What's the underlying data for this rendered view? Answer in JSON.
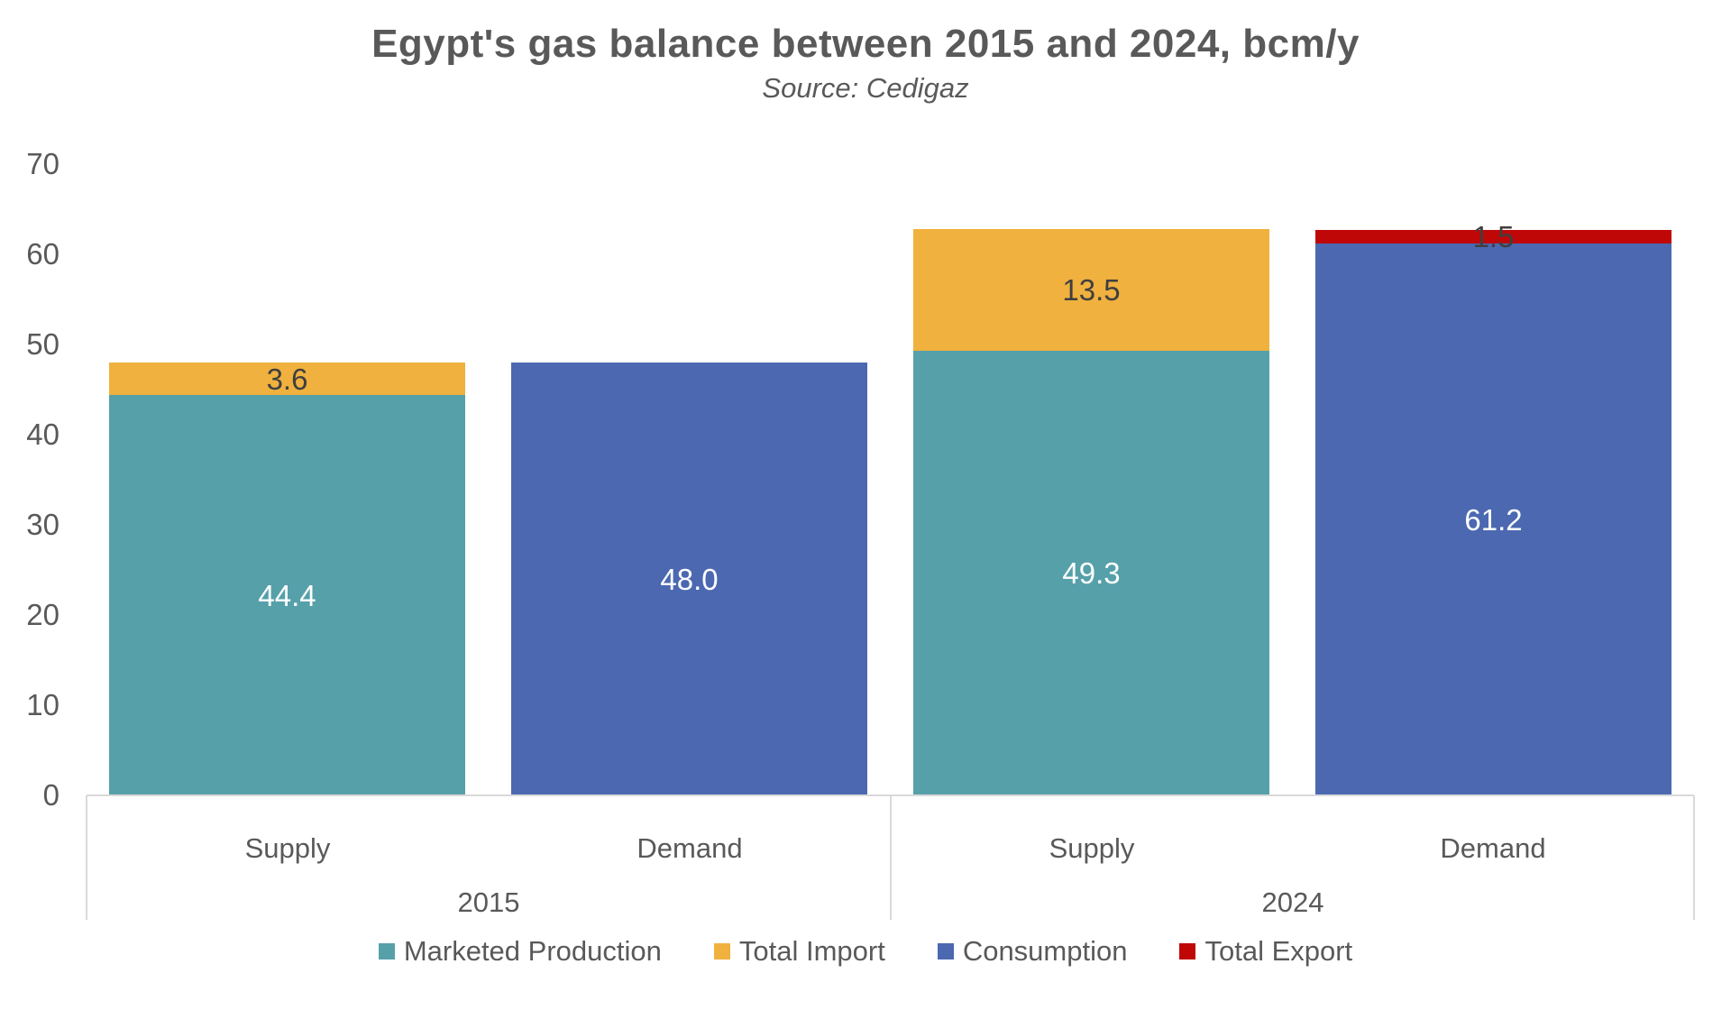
{
  "chart_data": {
    "type": "bar",
    "stacked": true,
    "title": "Egypt's gas balance between 2015 and 2024, bcm/y",
    "subtitle": "Source: Cedigaz",
    "xlabel": "",
    "ylabel": "",
    "ylim": [
      0,
      70
    ],
    "yticks": [
      0,
      10,
      20,
      30,
      40,
      50,
      60,
      70
    ],
    "grid": false,
    "legend_position": "bottom",
    "series": [
      {
        "name": "Marketed Production",
        "color": "#56A0AA",
        "label_style": "light"
      },
      {
        "name": "Total Import",
        "color": "#F0B13E",
        "label_style": "dark"
      },
      {
        "name": "Consumption",
        "color": "#4B68B1",
        "label_style": "light"
      },
      {
        "name": "Total Export",
        "color": "#C00707",
        "label_style": "dark"
      }
    ],
    "groups": [
      {
        "label": "2015",
        "bars": [
          {
            "category": "Supply",
            "segments": [
              {
                "series": "Marketed Production",
                "value": 44.4,
                "label": "44.4"
              },
              {
                "series": "Total Import",
                "value": 3.6,
                "label": "3.6"
              }
            ]
          },
          {
            "category": "Demand",
            "segments": [
              {
                "series": "Consumption",
                "value": 48.0,
                "label": "48.0"
              }
            ]
          }
        ]
      },
      {
        "label": "2024",
        "bars": [
          {
            "category": "Supply",
            "segments": [
              {
                "series": "Marketed Production",
                "value": 49.3,
                "label": "49.3"
              },
              {
                "series": "Total Import",
                "value": 13.5,
                "label": "13.5"
              }
            ]
          },
          {
            "category": "Demand",
            "segments": [
              {
                "series": "Consumption",
                "value": 61.2,
                "label": "61.2"
              },
              {
                "series": "Total Export",
                "value": 1.5,
                "label": "1.5"
              }
            ]
          }
        ]
      }
    ],
    "colors": {
      "text": "#595959",
      "dark_label": "#3F3F3F",
      "light_label": "#FFFFFF",
      "axis_line": "#D9D9D9"
    }
  }
}
